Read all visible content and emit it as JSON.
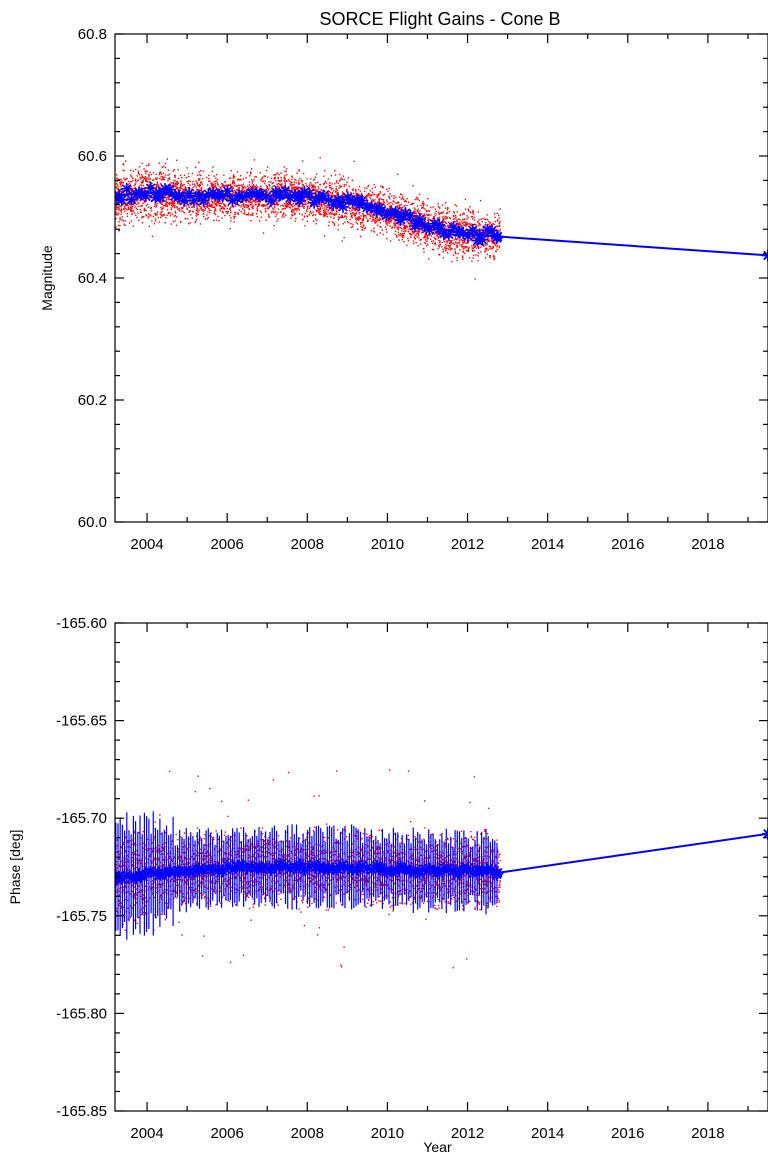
{
  "figure": {
    "title": "SORCE Flight Gains - Cone B"
  },
  "colors": {
    "raw_points": "#ff0000",
    "average_series": "#0000ff",
    "axes": "#000000"
  },
  "chart_data": [
    {
      "type": "scatter",
      "title": "SORCE Flight Gains - Cone B",
      "xlabel": "",
      "ylabel": "Magnitude",
      "xlim": [
        2003.2,
        2019.5
      ],
      "ylim": [
        60.0,
        60.8
      ],
      "x_ticks": [
        "2004",
        "2006",
        "2008",
        "2010",
        "2012",
        "2014",
        "2016",
        "2018"
      ],
      "y_ticks": [
        "60.0",
        "60.2",
        "60.4",
        "60.6",
        "60.8"
      ],
      "raw_scatter": {
        "x_range": [
          2003.2,
          2012.8
        ],
        "y_range": [
          60.44,
          60.61
        ],
        "marker": "dot",
        "color": "#ff0000"
      },
      "series": [
        {
          "marker": "asterisk",
          "color": "#0000ff",
          "x": [
            2003.3,
            2003.8,
            2004.3,
            2004.8,
            2005.3,
            2005.8,
            2006.3,
            2006.8,
            2007.3,
            2007.8,
            2008.3,
            2008.8,
            2009.3,
            2009.8,
            2010.3,
            2010.8,
            2011.3,
            2011.8,
            2012.3,
            2012.75,
            2019.5
          ],
          "y": [
            60.535,
            60.54,
            60.54,
            60.535,
            60.535,
            60.535,
            60.535,
            60.535,
            60.535,
            60.535,
            60.53,
            60.525,
            60.52,
            60.515,
            60.5,
            60.49,
            60.48,
            60.475,
            60.47,
            60.468,
            60.437
          ]
        }
      ],
      "grid": false
    },
    {
      "type": "scatter",
      "xlabel": "Year",
      "ylabel": "Phase [deg]",
      "xlim": [
        2003.2,
        2019.5
      ],
      "ylim": [
        -165.85,
        -165.6
      ],
      "x_ticks": [
        "2004",
        "2006",
        "2008",
        "2010",
        "2012",
        "2014",
        "2016",
        "2018"
      ],
      "y_ticks": [
        "-165.85",
        "-165.80",
        "-165.75",
        "-165.70",
        "-165.65",
        "-165.60"
      ],
      "raw_scatter": {
        "x_range": [
          2003.2,
          2012.8
        ],
        "y_range": [
          -165.8,
          -165.64
        ],
        "marker": "dot",
        "color": "#ff0000"
      },
      "series": [
        {
          "marker": "asterisk",
          "color": "#0000ff",
          "x": [
            2003.3,
            2003.8,
            2004.3,
            2004.8,
            2005.3,
            2005.8,
            2006.3,
            2006.8,
            2007.3,
            2007.8,
            2008.3,
            2008.8,
            2009.3,
            2009.8,
            2010.3,
            2010.8,
            2011.3,
            2011.8,
            2012.3,
            2012.75,
            2019.5
          ],
          "y": [
            -165.73,
            -165.729,
            -165.728,
            -165.727,
            -165.726,
            -165.726,
            -165.725,
            -165.725,
            -165.725,
            -165.725,
            -165.725,
            -165.725,
            -165.725,
            -165.726,
            -165.726,
            -165.727,
            -165.727,
            -165.727,
            -165.727,
            -165.728,
            -165.708
          ]
        }
      ],
      "grid": false
    }
  ]
}
